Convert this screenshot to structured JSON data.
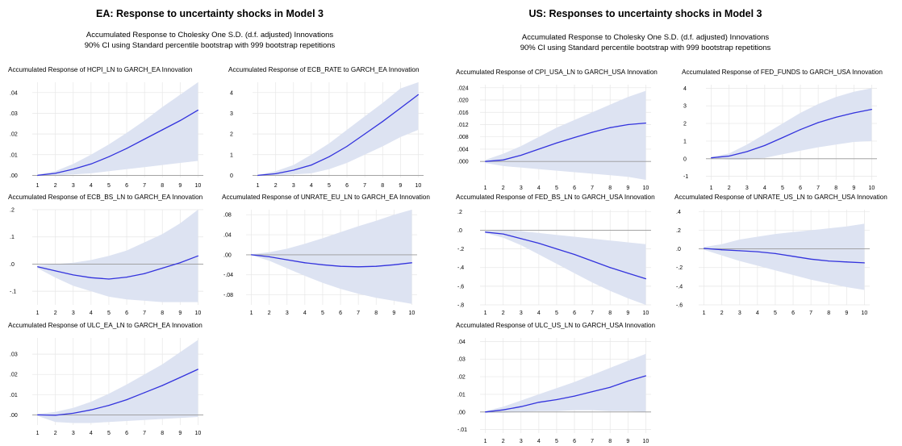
{
  "ea": {
    "title": "EA: Response to uncertainty shocks in Model 3",
    "subtitle1": "Accumulated Response to Cholesky One S.D. (d.f. adjusted) Innovations",
    "subtitle2": "90% CI using Standard percentile bootstrap with 999 bootstrap repetitions"
  },
  "us": {
    "title": "US: Responses to uncertainty shocks in Model 3",
    "subtitle1": "Accumulated Response to Cholesky One S.D. (d.f. adjusted) Innovations",
    "subtitle2": "90% CI using Standard percentile bootstrap with 999 bootstrap repetitions"
  },
  "colors": {
    "line": "#3333dd",
    "band": "#dde3f2",
    "zero": "#999999",
    "grid": "#e6e6e6"
  },
  "chart_data": [
    {
      "type": "area",
      "title": "Accumulated Response of HCPI_LN to GARCH_EA Innovation",
      "x": [
        1,
        2,
        3,
        4,
        5,
        6,
        7,
        8,
        9,
        10
      ],
      "y_ticks": [
        0,
        0.01,
        0.02,
        0.03,
        0.04
      ],
      "y_tick_labels": [
        ".00",
        ".01",
        ".02",
        ".03",
        ".04"
      ],
      "ylim": [
        -0.001,
        0.045
      ],
      "series": [
        {
          "role": "response",
          "values": [
            0.0,
            0.001,
            0.003,
            0.0055,
            0.009,
            0.013,
            0.0175,
            0.022,
            0.0265,
            0.0315
          ]
        },
        {
          "role": "ci_upper",
          "values": [
            0.0005,
            0.002,
            0.0055,
            0.01,
            0.015,
            0.0205,
            0.0265,
            0.033,
            0.039,
            0.045
          ]
        },
        {
          "role": "ci_lower",
          "values": [
            0.0,
            0.0,
            0.0005,
            0.001,
            0.002,
            0.003,
            0.004,
            0.005,
            0.006,
            0.007
          ]
        }
      ]
    },
    {
      "type": "area",
      "title": "Accumulated Response of ECB_RATE to GARCH_EA Innovation",
      "x": [
        1,
        2,
        3,
        4,
        5,
        6,
        7,
        8,
        9,
        10
      ],
      "y_ticks": [
        0,
        1,
        2,
        3,
        4
      ],
      "y_tick_labels": [
        "0",
        "1",
        "2",
        "3",
        "4"
      ],
      "ylim": [
        -0.1,
        4.5
      ],
      "series": [
        {
          "role": "response",
          "values": [
            0.0,
            0.08,
            0.25,
            0.5,
            0.9,
            1.4,
            2.0,
            2.6,
            3.25,
            3.9
          ]
        },
        {
          "role": "ci_upper",
          "values": [
            0.02,
            0.2,
            0.5,
            1.0,
            1.55,
            2.2,
            2.85,
            3.5,
            4.2,
            4.5
          ]
        },
        {
          "role": "ci_lower",
          "values": [
            0.0,
            0.0,
            0.05,
            0.1,
            0.3,
            0.6,
            1.0,
            1.4,
            1.85,
            2.2
          ]
        }
      ]
    },
    {
      "type": "area",
      "title": "Accumulated Response of ECB_BS_LN to GARCH_EA Innovation",
      "x": [
        1,
        2,
        3,
        4,
        5,
        6,
        7,
        8,
        9,
        10
      ],
      "y_ticks": [
        -0.1,
        0,
        0.1,
        0.2
      ],
      "y_tick_labels": [
        "-.1",
        ".0",
        ".1",
        ".2"
      ],
      "ylim": [
        -0.15,
        0.2
      ],
      "series": [
        {
          "role": "response",
          "values": [
            -0.01,
            -0.025,
            -0.04,
            -0.05,
            -0.055,
            -0.048,
            -0.035,
            -0.015,
            0.005,
            0.03
          ]
        },
        {
          "role": "ci_upper",
          "values": [
            -0.005,
            0.0,
            0.005,
            0.015,
            0.03,
            0.05,
            0.08,
            0.11,
            0.15,
            0.2
          ]
        },
        {
          "role": "ci_lower",
          "values": [
            -0.015,
            -0.05,
            -0.08,
            -0.1,
            -0.12,
            -0.13,
            -0.135,
            -0.14,
            -0.14,
            -0.14
          ]
        }
      ]
    },
    {
      "type": "area",
      "title": "Accumulated Response of UNRATE_EU_LN to GARCH_EA Innovation",
      "x": [
        1,
        2,
        3,
        4,
        5,
        6,
        7,
        8,
        9,
        10
      ],
      "y_ticks": [
        -0.08,
        -0.04,
        0,
        0.04,
        0.08
      ],
      "y_tick_labels": [
        "-.08",
        "-.04",
        ".00",
        ".04",
        ".08"
      ],
      "ylim": [
        -0.1,
        0.09
      ],
      "series": [
        {
          "role": "response",
          "values": [
            0.0,
            -0.004,
            -0.01,
            -0.016,
            -0.02,
            -0.023,
            -0.024,
            -0.023,
            -0.02,
            -0.016
          ]
        },
        {
          "role": "ci_upper",
          "values": [
            0.001,
            0.005,
            0.012,
            0.022,
            0.033,
            0.045,
            0.057,
            0.068,
            0.08,
            0.09
          ]
        },
        {
          "role": "ci_lower",
          "values": [
            -0.001,
            -0.012,
            -0.027,
            -0.042,
            -0.056,
            -0.068,
            -0.078,
            -0.086,
            -0.092,
            -0.098
          ]
        }
      ]
    },
    {
      "type": "area",
      "title": "Accumulated Response of ULC_EA_LN to GARCH_EA Innovation",
      "x": [
        1,
        2,
        3,
        4,
        5,
        6,
        7,
        8,
        9,
        10
      ],
      "y_ticks": [
        0,
        0.01,
        0.02,
        0.03
      ],
      "y_tick_labels": [
        ".00",
        ".01",
        ".02",
        ".03"
      ],
      "ylim": [
        -0.005,
        0.038
      ],
      "series": [
        {
          "role": "response",
          "values": [
            0.0,
            -0.0002,
            0.0008,
            0.0025,
            0.0047,
            0.0075,
            0.011,
            0.0145,
            0.0185,
            0.0225
          ]
        },
        {
          "role": "ci_upper",
          "values": [
            0.0005,
            0.0015,
            0.0035,
            0.0065,
            0.0105,
            0.015,
            0.02,
            0.025,
            0.031,
            0.037
          ]
        },
        {
          "role": "ci_lower",
          "values": [
            -0.0005,
            -0.0035,
            -0.004,
            -0.004,
            -0.0035,
            -0.003,
            -0.0025,
            -0.002,
            -0.0015,
            -0.001
          ]
        }
      ]
    },
    {
      "type": "area",
      "title": "Accumulated Response of CPI_USA_LN to GARCH_USA Innovation",
      "x": [
        1,
        2,
        3,
        4,
        5,
        6,
        7,
        8,
        9,
        10
      ],
      "y_ticks": [
        0,
        0.004,
        0.008,
        0.012,
        0.016,
        0.02,
        0.024
      ],
      "y_tick_labels": [
        ".000",
        ".004",
        ".008",
        ".012",
        ".016",
        ".020",
        ".024"
      ],
      "ylim": [
        -0.006,
        0.025
      ],
      "series": [
        {
          "role": "response",
          "values": [
            0.0,
            0.0005,
            0.002,
            0.004,
            0.006,
            0.0078,
            0.0095,
            0.011,
            0.012,
            0.0125
          ]
        },
        {
          "role": "ci_upper",
          "values": [
            0.0005,
            0.0025,
            0.005,
            0.008,
            0.011,
            0.0135,
            0.016,
            0.0185,
            0.021,
            0.023
          ]
        },
        {
          "role": "ci_lower",
          "values": [
            -0.0005,
            -0.0015,
            -0.002,
            -0.0025,
            -0.003,
            -0.0035,
            -0.004,
            -0.0045,
            -0.005,
            -0.006
          ]
        }
      ]
    },
    {
      "type": "area",
      "title": "Accumulated Response of FED_FUNDS to GARCH_USA Innovation",
      "x": [
        1,
        2,
        3,
        4,
        5,
        6,
        7,
        8,
        9,
        10
      ],
      "y_ticks": [
        -1,
        0,
        1,
        2,
        3,
        4
      ],
      "y_tick_labels": [
        "-1",
        "0",
        "1",
        "2",
        "3",
        "4"
      ],
      "ylim": [
        -1.2,
        4.2
      ],
      "series": [
        {
          "role": "response",
          "values": [
            0.05,
            0.15,
            0.4,
            0.75,
            1.2,
            1.65,
            2.05,
            2.35,
            2.6,
            2.8
          ]
        },
        {
          "role": "ci_upper",
          "values": [
            0.1,
            0.3,
            0.8,
            1.4,
            2.0,
            2.6,
            3.1,
            3.5,
            3.8,
            4.0
          ]
        },
        {
          "role": "ci_lower",
          "values": [
            0.0,
            -0.05,
            -0.05,
            0.05,
            0.25,
            0.45,
            0.65,
            0.8,
            0.95,
            1.0
          ]
        }
      ]
    },
    {
      "type": "area",
      "title": "Accumulated Response of FED_BS_LN to GARCH_USA Innovation",
      "x": [
        1,
        2,
        3,
        4,
        5,
        6,
        7,
        8,
        9,
        10
      ],
      "y_ticks": [
        -0.8,
        -0.6,
        -0.4,
        -0.2,
        0,
        0.2
      ],
      "y_tick_labels": [
        "-.8",
        "-.6",
        "-.4",
        "-.2",
        ".0",
        ".2"
      ],
      "ylim": [
        -0.8,
        0.22
      ],
      "series": [
        {
          "role": "response",
          "values": [
            -0.02,
            -0.04,
            -0.09,
            -0.14,
            -0.2,
            -0.26,
            -0.33,
            -0.4,
            -0.46,
            -0.52
          ]
        },
        {
          "role": "ci_upper",
          "values": [
            -0.01,
            0.0,
            -0.01,
            -0.03,
            -0.05,
            -0.07,
            -0.09,
            -0.11,
            -0.13,
            -0.15
          ]
        },
        {
          "role": "ci_lower",
          "values": [
            -0.03,
            -0.08,
            -0.16,
            -0.26,
            -0.36,
            -0.46,
            -0.56,
            -0.65,
            -0.73,
            -0.8
          ]
        }
      ]
    },
    {
      "type": "area",
      "title": "Accumulated Response of UNRATE_US_LN to GARCH_USA Innovation",
      "x": [
        1,
        2,
        3,
        4,
        5,
        6,
        7,
        8,
        9,
        10
      ],
      "y_ticks": [
        -0.6,
        -0.4,
        -0.2,
        0,
        0.2,
        0.4
      ],
      "y_tick_labels": [
        "-.6",
        "-.4",
        "-.2",
        ".0",
        ".2",
        ".4"
      ],
      "ylim": [
        -0.6,
        0.42
      ],
      "series": [
        {
          "role": "response",
          "values": [
            0.005,
            -0.01,
            -0.02,
            -0.03,
            -0.05,
            -0.08,
            -0.11,
            -0.13,
            -0.14,
            -0.15
          ]
        },
        {
          "role": "ci_upper",
          "values": [
            0.02,
            0.05,
            0.1,
            0.13,
            0.16,
            0.18,
            0.2,
            0.22,
            0.24,
            0.27
          ]
        },
        {
          "role": "ci_lower",
          "values": [
            -0.01,
            -0.07,
            -0.13,
            -0.18,
            -0.23,
            -0.28,
            -0.33,
            -0.37,
            -0.41,
            -0.44
          ]
        }
      ]
    },
    {
      "type": "area",
      "title": "Accumulated Response of ULC_US_LN to GARCH_USA Innovation",
      "x": [
        1,
        2,
        3,
        4,
        5,
        6,
        7,
        8,
        9,
        10
      ],
      "y_ticks": [
        -0.01,
        0,
        0.01,
        0.02,
        0.03,
        0.04
      ],
      "y_tick_labels": [
        "-.01",
        ".00",
        ".01",
        ".02",
        ".03",
        ".04"
      ],
      "ylim": [
        -0.012,
        0.042
      ],
      "series": [
        {
          "role": "response",
          "values": [
            0.0,
            0.0012,
            0.003,
            0.0055,
            0.007,
            0.009,
            0.0115,
            0.014,
            0.0175,
            0.0205
          ]
        },
        {
          "role": "ci_upper",
          "values": [
            0.0005,
            0.003,
            0.0065,
            0.01,
            0.0135,
            0.017,
            0.021,
            0.025,
            0.029,
            0.033
          ]
        },
        {
          "role": "ci_lower",
          "values": [
            -0.0005,
            -0.0005,
            0.0,
            0.0005,
            0.0005,
            0.001,
            0.001,
            0.0005,
            0.0005,
            0.0
          ]
        }
      ]
    }
  ]
}
